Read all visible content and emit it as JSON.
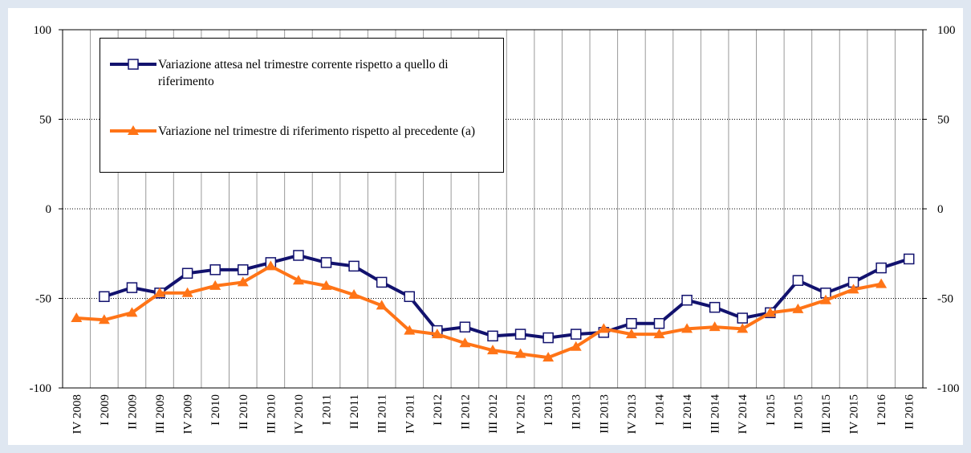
{
  "chart_data": {
    "type": "line",
    "categories": [
      "IV 2008",
      "I 2009",
      "II 2009",
      "III 2009",
      "IV 2009",
      "I 2010",
      "II 2010",
      "III 2010",
      "IV 2010",
      "I 2011",
      "II 2011",
      "III 2011",
      "IV 2011",
      "I 2012",
      "II 2012",
      "III 2012",
      "IV 2012",
      "I 2013",
      "II 2013",
      "III 2013",
      "IV 2013",
      "I 2014",
      "II 2014",
      "III 2014",
      "IV 2014",
      "I 2015",
      "II 2015",
      "III 2015",
      "IV 2015",
      "I 2016",
      "II 2016"
    ],
    "series": [
      {
        "name": "Variazione attesa nel trimestre corrente rispetto a quello di riferimento",
        "color": "#12126e",
        "marker": "square",
        "values": [
          null,
          -49,
          -44,
          -47,
          -36,
          -34,
          -34,
          -30,
          -26,
          -30,
          -32,
          -41,
          -49,
          -68,
          -66,
          -71,
          -70,
          -72,
          -70,
          -69,
          -64,
          -64,
          -51,
          -55,
          -61,
          -58,
          -40,
          -47,
          -41,
          -33,
          -28
        ]
      },
      {
        "name": "Variazione nel trimestre di riferimento rispetto al precedente (a)",
        "color": "#ff7417",
        "marker": "triangle",
        "values": [
          -61,
          -62,
          -58,
          -47,
          -47,
          -43,
          -41,
          -32,
          -40,
          -43,
          -48,
          -54,
          -68,
          -70,
          -75,
          -79,
          -81,
          -83,
          -77,
          -67,
          -70,
          -70,
          -67,
          -66,
          -67,
          -58,
          -56,
          -51,
          -45,
          -42,
          null
        ]
      }
    ],
    "ylim": [
      -100,
      100
    ],
    "yticks": [
      -100,
      -50,
      0,
      50,
      100
    ],
    "y2lim": [
      -100,
      100
    ],
    "y2ticks": [
      -100,
      -50,
      0,
      50,
      100
    ],
    "grid": true
  }
}
